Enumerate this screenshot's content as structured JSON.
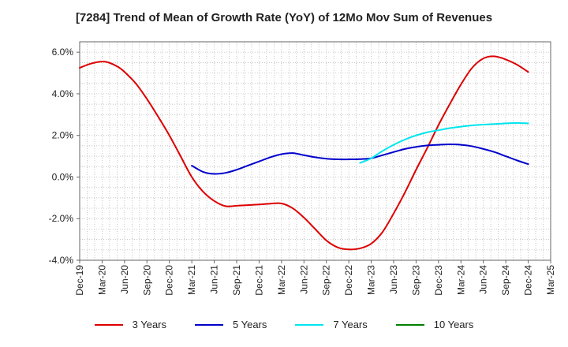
{
  "chart_data": {
    "type": "line",
    "title": "[7284]  Trend of Mean of Growth Rate (YoY) of 12Mo Mov Sum of Revenues",
    "xlabel": "",
    "ylabel": "",
    "ylim": [
      -4.0,
      6.5
    ],
    "yticks": [
      "6.0%",
      "4.0%",
      "2.0%",
      "0.0%",
      "-2.0%",
      "-4.0%"
    ],
    "ytick_values": [
      6,
      4,
      2,
      0,
      -2,
      -4
    ],
    "categories": [
      "Dec-19",
      "Mar-20",
      "Jun-20",
      "Sep-20",
      "Dec-20",
      "Mar-21",
      "Jun-21",
      "Sep-21",
      "Dec-21",
      "Mar-22",
      "Jun-22",
      "Sep-22",
      "Dec-22",
      "Mar-23",
      "Jun-23",
      "Sep-23",
      "Dec-23",
      "Mar-24",
      "Jun-24",
      "Sep-24",
      "Dec-24",
      "Mar-25"
    ],
    "grid": true,
    "legend_position": "bottom",
    "series": [
      {
        "name": "3 Years",
        "color": "#dd0000",
        "points": [
          [
            0,
            5.25
          ],
          [
            0.5,
            5.45
          ],
          [
            1,
            5.55
          ],
          [
            1.3,
            5.5
          ],
          [
            1.7,
            5.3
          ],
          [
            2,
            5.05
          ],
          [
            2.5,
            4.5
          ],
          [
            3,
            3.75
          ],
          [
            3.5,
            2.9
          ],
          [
            4,
            2.0
          ],
          [
            4.5,
            1.0
          ],
          [
            5,
            0.0
          ],
          [
            5.5,
            -0.7
          ],
          [
            6,
            -1.15
          ],
          [
            6.5,
            -1.4
          ],
          [
            7,
            -1.38
          ],
          [
            7.5,
            -1.35
          ],
          [
            8,
            -1.32
          ],
          [
            8.5,
            -1.28
          ],
          [
            9,
            -1.27
          ],
          [
            9.5,
            -1.5
          ],
          [
            10,
            -1.95
          ],
          [
            10.5,
            -2.5
          ],
          [
            11,
            -3.05
          ],
          [
            11.5,
            -3.38
          ],
          [
            12,
            -3.48
          ],
          [
            12.5,
            -3.43
          ],
          [
            13,
            -3.2
          ],
          [
            13.5,
            -2.65
          ],
          [
            14,
            -1.75
          ],
          [
            14.5,
            -0.75
          ],
          [
            15,
            0.35
          ],
          [
            15.5,
            1.4
          ],
          [
            16,
            2.5
          ],
          [
            16.5,
            3.5
          ],
          [
            17,
            4.45
          ],
          [
            17.5,
            5.25
          ],
          [
            18,
            5.7
          ],
          [
            18.5,
            5.8
          ],
          [
            19,
            5.65
          ],
          [
            19.5,
            5.4
          ],
          [
            20,
            5.05
          ]
        ]
      },
      {
        "name": "5 Years",
        "color": "#0000cc",
        "points": [
          [
            5,
            0.55
          ],
          [
            5.5,
            0.25
          ],
          [
            6,
            0.15
          ],
          [
            6.5,
            0.2
          ],
          [
            7,
            0.35
          ],
          [
            7.5,
            0.55
          ],
          [
            8,
            0.75
          ],
          [
            8.5,
            0.95
          ],
          [
            9,
            1.1
          ],
          [
            9.5,
            1.15
          ],
          [
            10,
            1.05
          ],
          [
            10.5,
            0.95
          ],
          [
            11,
            0.88
          ],
          [
            11.5,
            0.85
          ],
          [
            12,
            0.85
          ],
          [
            12.5,
            0.86
          ],
          [
            13,
            0.9
          ],
          [
            13.5,
            1.05
          ],
          [
            14,
            1.2
          ],
          [
            14.5,
            1.35
          ],
          [
            15,
            1.45
          ],
          [
            15.5,
            1.52
          ],
          [
            16,
            1.55
          ],
          [
            16.5,
            1.57
          ],
          [
            17,
            1.55
          ],
          [
            17.5,
            1.48
          ],
          [
            18,
            1.35
          ],
          [
            18.5,
            1.2
          ],
          [
            19,
            1.0
          ],
          [
            19.5,
            0.8
          ],
          [
            20,
            0.62
          ]
        ]
      },
      {
        "name": "7 Years",
        "color": "#00e5ee",
        "points": [
          [
            12.5,
            0.68
          ],
          [
            13,
            0.9
          ],
          [
            13.5,
            1.25
          ],
          [
            14,
            1.55
          ],
          [
            14.5,
            1.8
          ],
          [
            15,
            2.0
          ],
          [
            15.5,
            2.15
          ],
          [
            16,
            2.25
          ],
          [
            16.5,
            2.35
          ],
          [
            17,
            2.42
          ],
          [
            17.5,
            2.48
          ],
          [
            18,
            2.52
          ],
          [
            18.5,
            2.55
          ],
          [
            19,
            2.58
          ],
          [
            19.5,
            2.6
          ],
          [
            20,
            2.58
          ]
        ]
      },
      {
        "name": "10 Years",
        "color": "#008000",
        "points": []
      }
    ]
  }
}
